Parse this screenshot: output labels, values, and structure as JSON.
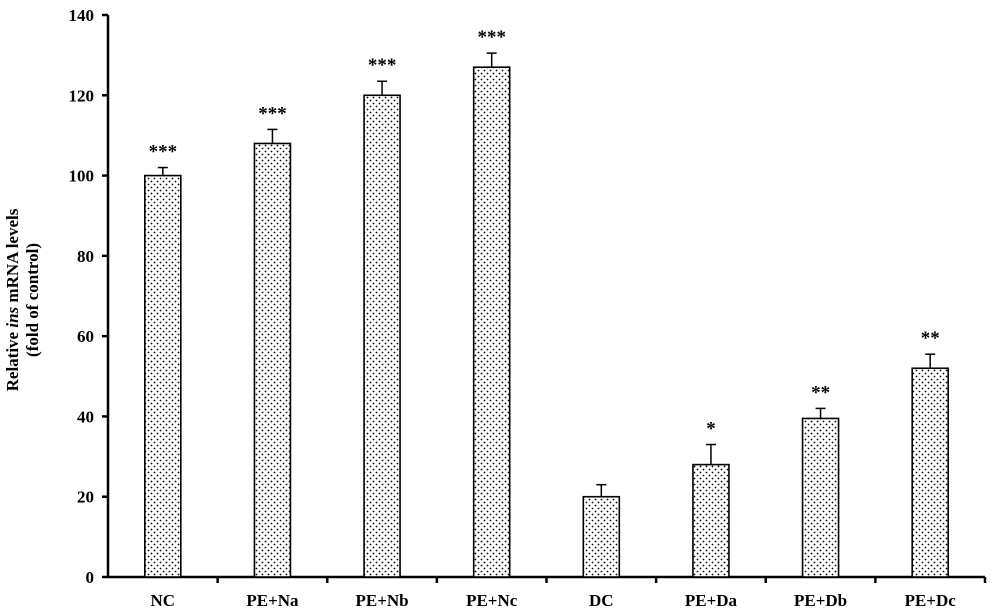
{
  "chart_data": {
    "type": "bar",
    "categories": [
      "NC",
      "PE+Na",
      "PE+Nb",
      "PE+Nc",
      "DC",
      "PE+Da",
      "PE+Db",
      "PE+Dc"
    ],
    "series": [
      {
        "values": [
          100,
          108,
          120,
          127,
          20,
          28,
          39.5,
          52
        ],
        "errors": [
          2,
          3.5,
          3.5,
          3.5,
          3,
          5,
          2.5,
          3.5
        ]
      }
    ],
    "significance": [
      "***",
      "***",
      "***",
      "***",
      "",
      "*",
      "**",
      "**"
    ],
    "ylabel_line1_pre": "Relative ",
    "ylabel_line1_italic": "ins",
    "ylabel_line1_post": " mRNA levels",
    "ylabel_line2": "(fold of control)",
    "xlabel": "",
    "ylim": [
      0,
      140
    ],
    "yticks": [
      0,
      20,
      40,
      60,
      80,
      100,
      120,
      140
    ],
    "grid": false,
    "legend": "none",
    "bar_fill": "#ffffff",
    "bar_pattern_color": "#000000"
  }
}
